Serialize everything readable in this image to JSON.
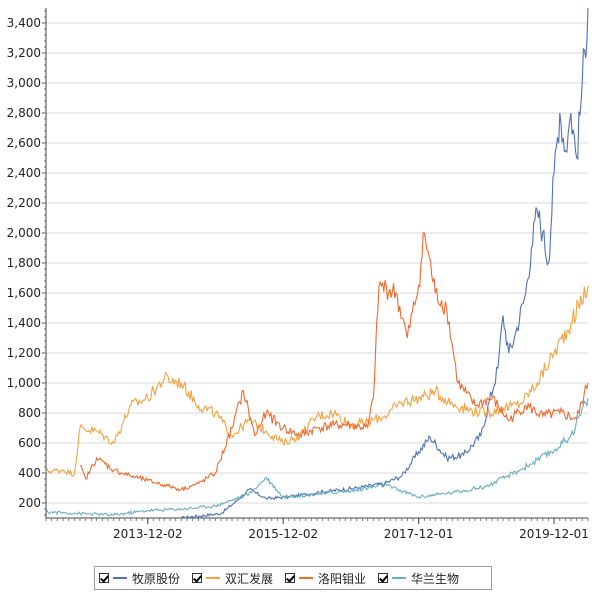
{
  "chart_data": {
    "type": "line",
    "title": "",
    "xlabel": "",
    "ylabel": "",
    "x_range": [
      "2012-06-01",
      "2020-06-01"
    ],
    "ylim": [
      100,
      3500
    ],
    "y_ticks": [
      200,
      400,
      600,
      800,
      1000,
      1200,
      1400,
      1600,
      1800,
      2000,
      2200,
      2400,
      2600,
      2800,
      3000,
      3200,
      3400
    ],
    "y_tick_labels": [
      "200",
      "400",
      "600",
      "800",
      "1,000",
      "1,200",
      "1,400",
      "1,600",
      "1,800",
      "2,000",
      "2,200",
      "2,400",
      "2,600",
      "2,800",
      "3,000",
      "3,200",
      "3,400"
    ],
    "x_ticks": [
      "2013-12-02",
      "2015-12-02",
      "2017-12-01",
      "2019-12-01"
    ],
    "grid": true,
    "legend_position": "bottom",
    "series": [
      {
        "name": "牧原股份",
        "color": "#4e72b8",
        "points": [
          [
            "2014-06-01",
            100
          ],
          [
            "2015-01-01",
            130
          ],
          [
            "2015-04-01",
            220
          ],
          [
            "2015-06-01",
            290
          ],
          [
            "2015-09-01",
            230
          ],
          [
            "2016-01-01",
            240
          ],
          [
            "2016-06-01",
            270
          ],
          [
            "2017-01-01",
            300
          ],
          [
            "2017-06-01",
            330
          ],
          [
            "2017-09-01",
            380
          ],
          [
            "2017-12-01",
            540
          ],
          [
            "2018-02-01",
            640
          ],
          [
            "2018-05-01",
            500
          ],
          [
            "2018-08-01",
            520
          ],
          [
            "2018-11-01",
            650
          ],
          [
            "2019-02-01",
            1100
          ],
          [
            "2019-03-01",
            1450
          ],
          [
            "2019-04-01",
            1200
          ],
          [
            "2019-05-01",
            1300
          ],
          [
            "2019-07-01",
            1600
          ],
          [
            "2019-08-01",
            1900
          ],
          [
            "2019-09-01",
            2150
          ],
          [
            "2019-10-01",
            2000
          ],
          [
            "2019-11-01",
            1800
          ],
          [
            "2019-12-01",
            2400
          ],
          [
            "2020-01-01",
            2800
          ],
          [
            "2020-02-01",
            2550
          ],
          [
            "2020-03-01",
            2800
          ],
          [
            "2020-04-01",
            2500
          ],
          [
            "2020-05-01",
            3000
          ],
          [
            "2020-06-01",
            3500
          ]
        ]
      },
      {
        "name": "双汇发展",
        "color": "#f4a340",
        "points": [
          [
            "2012-06-01",
            410
          ],
          [
            "2012-09-01",
            420
          ],
          [
            "2012-11-01",
            390
          ],
          [
            "2012-12-01",
            700
          ],
          [
            "2013-03-01",
            680
          ],
          [
            "2013-06-01",
            600
          ],
          [
            "2013-09-01",
            850
          ],
          [
            "2013-12-01",
            900
          ],
          [
            "2014-03-01",
            1030
          ],
          [
            "2014-06-01",
            1000
          ],
          [
            "2014-09-01",
            850
          ],
          [
            "2014-12-01",
            800
          ],
          [
            "2015-03-01",
            650
          ],
          [
            "2015-06-01",
            750
          ],
          [
            "2015-09-01",
            680
          ],
          [
            "2015-12-01",
            600
          ],
          [
            "2016-03-01",
            650
          ],
          [
            "2016-06-01",
            780
          ],
          [
            "2016-09-01",
            800
          ],
          [
            "2016-12-01",
            720
          ],
          [
            "2017-03-01",
            740
          ],
          [
            "2017-06-01",
            780
          ],
          [
            "2017-09-01",
            870
          ],
          [
            "2017-12-01",
            900
          ],
          [
            "2018-03-01",
            940
          ],
          [
            "2018-06-01",
            860
          ],
          [
            "2018-09-01",
            820
          ],
          [
            "2018-12-01",
            800
          ],
          [
            "2019-03-01",
            830
          ],
          [
            "2019-06-01",
            860
          ],
          [
            "2019-09-01",
            1000
          ],
          [
            "2019-12-01",
            1200
          ],
          [
            "2020-03-01",
            1400
          ],
          [
            "2020-06-01",
            1650
          ]
        ]
      },
      {
        "name": "洛阳钼业",
        "color": "#ee6b2f",
        "points": [
          [
            "2012-12-01",
            450
          ],
          [
            "2013-01-01",
            360
          ],
          [
            "2013-03-01",
            500
          ],
          [
            "2013-06-01",
            420
          ],
          [
            "2013-09-01",
            380
          ],
          [
            "2013-12-01",
            350
          ],
          [
            "2014-03-01",
            320
          ],
          [
            "2014-06-01",
            290
          ],
          [
            "2014-09-01",
            330
          ],
          [
            "2014-12-01",
            400
          ],
          [
            "2015-03-01",
            700
          ],
          [
            "2015-05-01",
            950
          ],
          [
            "2015-07-01",
            650
          ],
          [
            "2015-09-01",
            800
          ],
          [
            "2015-12-01",
            700
          ],
          [
            "2016-03-01",
            650
          ],
          [
            "2016-06-01",
            700
          ],
          [
            "2016-09-01",
            720
          ],
          [
            "2016-12-01",
            720
          ],
          [
            "2017-03-01",
            700
          ],
          [
            "2017-04-01",
            900
          ],
          [
            "2017-05-01",
            1650
          ],
          [
            "2017-08-01",
            1600
          ],
          [
            "2017-10-01",
            1300
          ],
          [
            "2017-12-01",
            1650
          ],
          [
            "2018-01-01",
            2000
          ],
          [
            "2018-03-01",
            1600
          ],
          [
            "2018-05-01",
            1500
          ],
          [
            "2018-07-01",
            1000
          ],
          [
            "2018-10-01",
            850
          ],
          [
            "2019-01-01",
            900
          ],
          [
            "2019-04-01",
            750
          ],
          [
            "2019-07-01",
            850
          ],
          [
            "2019-10-01",
            780
          ],
          [
            "2020-01-01",
            800
          ],
          [
            "2020-04-01",
            760
          ],
          [
            "2020-06-01",
            1000
          ]
        ]
      },
      {
        "name": "华兰生物",
        "color": "#6aaec2",
        "points": [
          [
            "2012-06-01",
            140
          ],
          [
            "2012-12-01",
            130
          ],
          [
            "2013-06-01",
            120
          ],
          [
            "2013-12-01",
            150
          ],
          [
            "2014-06-01",
            160
          ],
          [
            "2014-12-01",
            180
          ],
          [
            "2015-06-01",
            260
          ],
          [
            "2015-09-01",
            370
          ],
          [
            "2015-12-01",
            240
          ],
          [
            "2016-06-01",
            260
          ],
          [
            "2016-12-01",
            280
          ],
          [
            "2017-06-01",
            320
          ],
          [
            "2017-12-01",
            240
          ],
          [
            "2018-06-01",
            270
          ],
          [
            "2018-12-01",
            310
          ],
          [
            "2019-06-01",
            420
          ],
          [
            "2019-12-01",
            550
          ],
          [
            "2020-03-01",
            650
          ],
          [
            "2020-06-01",
            900
          ]
        ]
      }
    ]
  }
}
